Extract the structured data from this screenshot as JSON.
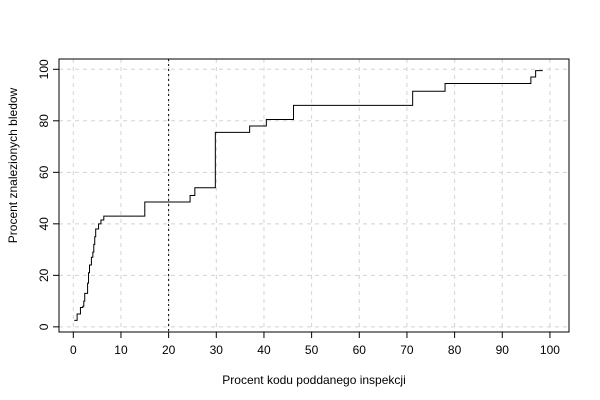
{
  "chart_data": {
    "type": "line",
    "title": "",
    "xlabel": "Procent kodu poddanego inspekcji",
    "ylabel": "Procent znalezionych bledow",
    "xlim": [
      -3,
      104
    ],
    "ylim": [
      -2,
      104
    ],
    "x_ticks": [
      0,
      10,
      20,
      30,
      40,
      50,
      60,
      70,
      80,
      90,
      100
    ],
    "y_ticks": [
      0,
      20,
      40,
      60,
      80,
      100
    ],
    "grid": true,
    "grid_style": "dashed",
    "reference_line": {
      "x": 20,
      "style": "dotted"
    },
    "series": [
      {
        "step": true,
        "color": "#000000",
        "points": [
          [
            0.2,
            2.5
          ],
          [
            0.8,
            5
          ],
          [
            1.5,
            7.5
          ],
          [
            2,
            8
          ],
          [
            2.2,
            10
          ],
          [
            2.4,
            13
          ],
          [
            2.8,
            13
          ],
          [
            3,
            17
          ],
          [
            3.2,
            21
          ],
          [
            3.4,
            24
          ],
          [
            3.8,
            27
          ],
          [
            4.1,
            29
          ],
          [
            4.3,
            32
          ],
          [
            4.5,
            35
          ],
          [
            4.7,
            38
          ],
          [
            5.3,
            40
          ],
          [
            5.8,
            41.5
          ],
          [
            6.4,
            43
          ],
          [
            15,
            48.5
          ],
          [
            24.5,
            51
          ],
          [
            25.5,
            54
          ],
          [
            29.8,
            75.5
          ],
          [
            37,
            78
          ],
          [
            40.5,
            80.5
          ],
          [
            46.2,
            86
          ],
          [
            71.2,
            91.5
          ],
          [
            78,
            94.5
          ],
          [
            96,
            97
          ],
          [
            97,
            99.5
          ],
          [
            98.5,
            99.5
          ]
        ]
      }
    ]
  }
}
